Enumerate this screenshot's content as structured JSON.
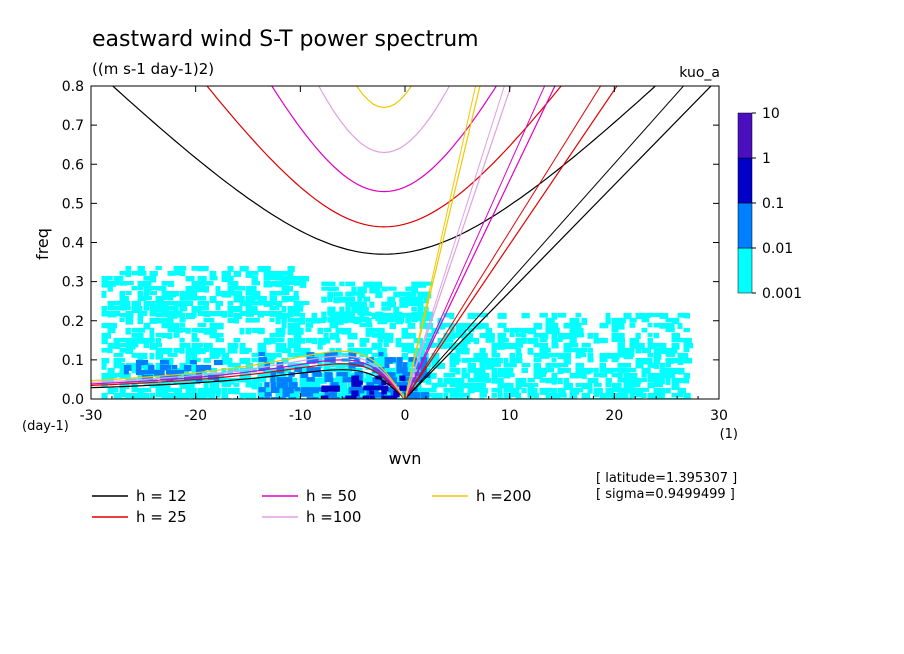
{
  "chart_data": {
    "type": "heatmap",
    "title": "eastward wind S-T power spectrum",
    "units": "((m s-1 day-1)2)",
    "model_label": "kuo_a",
    "xlabel": "wvn",
    "ylabel": "freq",
    "x_units": "(1)",
    "y_units": "(day-1)",
    "xlim": [
      -30,
      30
    ],
    "ylim": [
      0,
      0.8
    ],
    "x_ticks": [
      "-30",
      "-20",
      "-10",
      "0",
      "10",
      "20",
      "30"
    ],
    "y_ticks": [
      "0.0",
      "0.1",
      "0.2",
      "0.3",
      "0.4",
      "0.5",
      "0.6",
      "0.7",
      "0.8"
    ],
    "colorbar": {
      "levels": [
        "0.001",
        "0.01",
        "0.1",
        "1",
        "10"
      ],
      "colors": [
        "#00ffff",
        "#0080ff",
        "#0000c8",
        "#4b0fc0"
      ]
    },
    "spectral_power_regions": [
      {
        "level": 0,
        "x0": -29,
        "x1": 27,
        "f0": 0.0,
        "f1": 0.22
      },
      {
        "level": 0,
        "x0": -29,
        "x1": -10,
        "f0": 0.22,
        "f1": 0.34
      },
      {
        "level": 0,
        "x0": -8,
        "x1": 2,
        "f0": 0.2,
        "f1": 0.3
      },
      {
        "level": 1,
        "x0": -14,
        "x1": 2,
        "f0": 0.0,
        "f1": 0.12
      },
      {
        "level": 1,
        "x0": -28,
        "x1": -18,
        "f0": 0.05,
        "f1": 0.1
      },
      {
        "level": 2,
        "x0": -8,
        "x1": 0,
        "f0": 0.0,
        "f1": 0.06
      }
    ],
    "dispersion_curves": {
      "equivalent_depths": [
        {
          "label": "h = 12",
          "h": 12,
          "color": "#000000"
        },
        {
          "label": "h = 25",
          "h": 25,
          "color": "#e00000"
        },
        {
          "label": "h = 50",
          "h": 50,
          "color": "#e000c0"
        },
        {
          "label": "h =100",
          "h": 100,
          "color": "#e0a0e0"
        },
        {
          "label": "h =200",
          "h": 200,
          "color": "#f0c800"
        }
      ],
      "latitude": 1.395307,
      "kelvin_slope_per_h": 0.0079,
      "wig_min_freq": [
        0.37,
        0.44,
        0.53,
        0.63,
        0.745
      ],
      "rossby_peak_freq": [
        0.075,
        0.09,
        0.1,
        0.11,
        0.122
      ]
    },
    "annotations": [
      "[ latitude=1.395307 ]",
      "[ sigma=0.9499499 ]"
    ]
  }
}
